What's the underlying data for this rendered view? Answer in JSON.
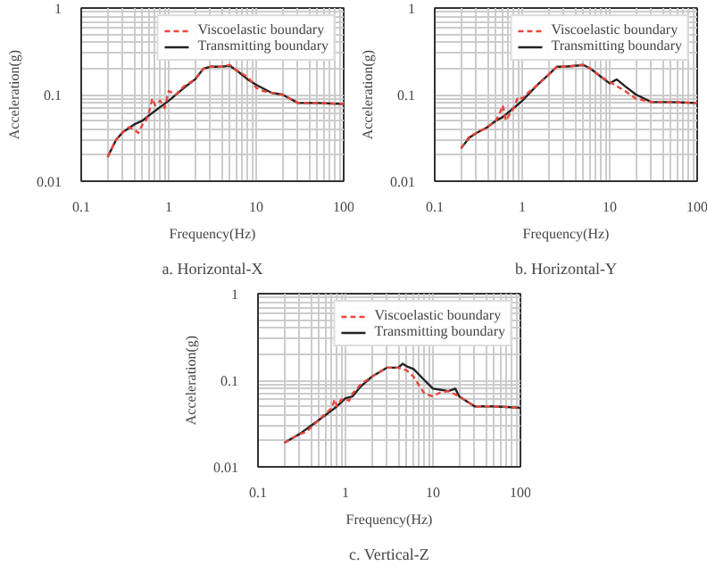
{
  "chart_data": [
    {
      "type": "line",
      "title": "a. Horizontal-X",
      "xlabel": "Frequency(Hz)",
      "ylabel": "Acceleration(g)",
      "log": "xy",
      "xlim": [
        0.1,
        100
      ],
      "ylim": [
        0.01,
        1
      ],
      "xticks": [
        0.1,
        1,
        10,
        100
      ],
      "yticks": [
        0.01,
        0.1,
        1
      ],
      "grid": true,
      "legend": "top right",
      "series": [
        {
          "name": "Viscoelastic boundary",
          "color": "#e8453c",
          "line_style": "dashed",
          "x": [
            0.2,
            0.25,
            0.3,
            0.35,
            0.4,
            0.45,
            0.5,
            0.55,
            0.6,
            0.65,
            0.7,
            0.8,
            0.9,
            1,
            1.2,
            1.5,
            2,
            2.5,
            3,
            4,
            5,
            6,
            8,
            10,
            12,
            15,
            20,
            30,
            50,
            100
          ],
          "values": [
            0.019,
            0.03,
            0.037,
            0.042,
            0.04,
            0.036,
            0.045,
            0.05,
            0.065,
            0.09,
            0.075,
            0.085,
            0.07,
            0.11,
            0.1,
            0.125,
            0.15,
            0.2,
            0.21,
            0.21,
            0.22,
            0.19,
            0.16,
            0.12,
            0.11,
            0.105,
            0.1,
            0.08,
            0.08,
            0.078
          ]
        },
        {
          "name": "Transmitting boundary",
          "color": "#222222",
          "line_style": "solid",
          "x": [
            0.2,
            0.25,
            0.3,
            0.4,
            0.5,
            0.6,
            0.8,
            1,
            1.5,
            2,
            2.5,
            3,
            4,
            5,
            6,
            8,
            10,
            15,
            20,
            30,
            50,
            100
          ],
          "values": [
            0.019,
            0.03,
            0.037,
            0.045,
            0.05,
            0.058,
            0.072,
            0.085,
            0.12,
            0.15,
            0.2,
            0.21,
            0.21,
            0.215,
            0.19,
            0.15,
            0.13,
            0.105,
            0.1,
            0.08,
            0.08,
            0.078
          ]
        }
      ]
    },
    {
      "type": "line",
      "title": "b. Horizontal-Y",
      "xlabel": "Frequency(Hz)",
      "ylabel": "Acceleration(g)",
      "log": "xy",
      "xlim": [
        0.1,
        100
      ],
      "ylim": [
        0.01,
        1
      ],
      "xticks": [
        0.1,
        1,
        10,
        100
      ],
      "yticks": [
        0.01,
        0.1,
        1
      ],
      "grid": true,
      "legend": "top right",
      "series": [
        {
          "name": "Viscoelastic boundary",
          "color": "#e8453c",
          "line_style": "dashed",
          "x": [
            0.2,
            0.25,
            0.3,
            0.4,
            0.5,
            0.55,
            0.6,
            0.65,
            0.8,
            0.9,
            1,
            1.1,
            1.5,
            2,
            2.5,
            3,
            4,
            5,
            6,
            8,
            10,
            15,
            20,
            30,
            50,
            100
          ],
          "values": [
            0.024,
            0.033,
            0.036,
            0.042,
            0.05,
            0.06,
            0.075,
            0.05,
            0.07,
            0.095,
            0.09,
            0.1,
            0.13,
            0.17,
            0.21,
            0.21,
            0.215,
            0.22,
            0.2,
            0.16,
            0.14,
            0.11,
            0.09,
            0.082,
            0.082,
            0.08
          ]
        },
        {
          "name": "Transmitting boundary",
          "color": "#222222",
          "line_style": "solid",
          "x": [
            0.2,
            0.25,
            0.3,
            0.4,
            0.5,
            0.6,
            0.8,
            1,
            1.5,
            2,
            2.5,
            3,
            4,
            5,
            6,
            8,
            10,
            12,
            15,
            20,
            30,
            50,
            100
          ],
          "values": [
            0.024,
            0.032,
            0.036,
            0.042,
            0.05,
            0.055,
            0.07,
            0.085,
            0.13,
            0.17,
            0.21,
            0.21,
            0.215,
            0.22,
            0.2,
            0.16,
            0.135,
            0.15,
            0.125,
            0.1,
            0.082,
            0.082,
            0.08
          ]
        }
      ]
    },
    {
      "type": "line",
      "title": "c. Vertical-Z",
      "xlabel": "Frequency(Hz)",
      "ylabel": "Acceleration(g)",
      "log": "xy",
      "xlim": [
        0.1,
        100
      ],
      "ylim": [
        0.01,
        1
      ],
      "xticks": [
        0.1,
        1,
        10,
        100
      ],
      "yticks": [
        0.01,
        0.1,
        1
      ],
      "grid": true,
      "legend": "top right",
      "series": [
        {
          "name": "Viscoelastic boundary",
          "color": "#e8453c",
          "line_style": "dashed",
          "x": [
            0.2,
            0.3,
            0.35,
            0.5,
            0.7,
            0.75,
            0.8,
            0.85,
            0.9,
            1,
            1.1,
            1.2,
            1.5,
            2,
            3,
            4,
            5,
            6,
            8,
            10,
            12,
            15,
            20,
            30,
            50,
            100
          ],
          "values": [
            0.019,
            0.024,
            0.025,
            0.035,
            0.048,
            0.06,
            0.05,
            0.055,
            0.06,
            0.06,
            0.058,
            0.07,
            0.09,
            0.11,
            0.14,
            0.14,
            0.13,
            0.11,
            0.07,
            0.065,
            0.072,
            0.075,
            0.065,
            0.05,
            0.05,
            0.048
          ]
        },
        {
          "name": "Transmitting boundary",
          "color": "#222222",
          "line_style": "solid",
          "x": [
            0.2,
            0.3,
            0.5,
            0.7,
            0.8,
            1,
            1.2,
            1.5,
            2,
            3,
            4,
            4.5,
            5,
            6,
            8,
            10,
            12,
            15,
            18,
            20,
            30,
            50,
            100
          ],
          "values": [
            0.019,
            0.024,
            0.035,
            0.045,
            0.05,
            0.062,
            0.065,
            0.085,
            0.11,
            0.14,
            0.14,
            0.155,
            0.145,
            0.135,
            0.1,
            0.08,
            0.078,
            0.075,
            0.08,
            0.065,
            0.05,
            0.05,
            0.048
          ]
        }
      ]
    }
  ]
}
